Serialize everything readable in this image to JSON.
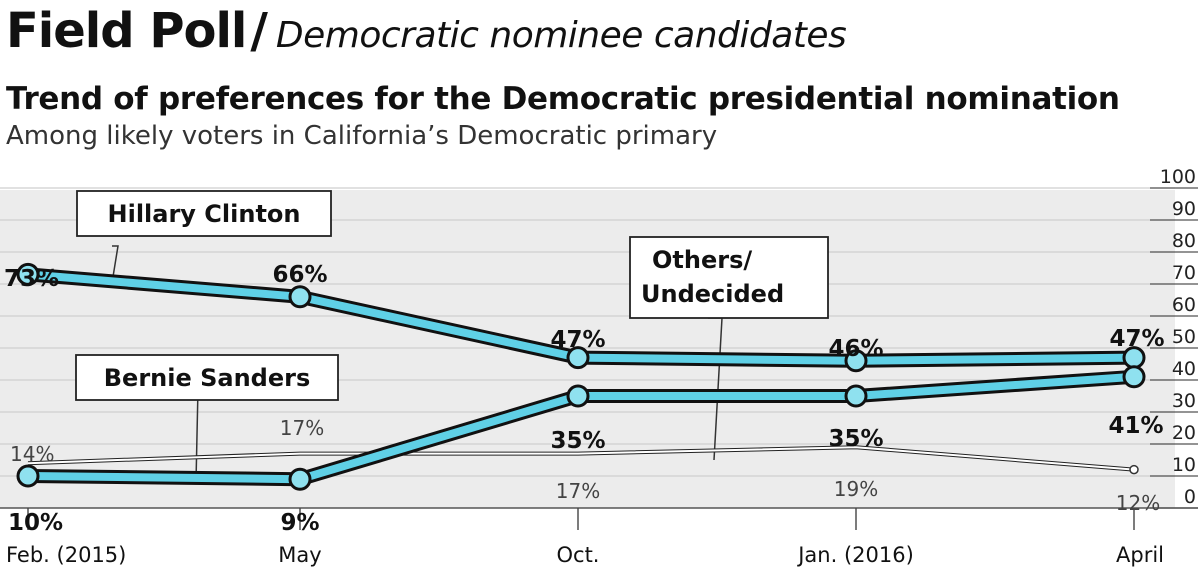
{
  "header": {
    "brand": "Field Poll",
    "separator": "/",
    "section": "Democratic nominee candidates"
  },
  "chart_data": {
    "type": "line",
    "title": "Trend of preferences for the Democratic presidential nomination",
    "subtitle": "Among likely voters in California’s Democratic primary",
    "categories": [
      "Feb. (2015)",
      "May",
      "Oct.",
      "Jan. (2016)",
      "April"
    ],
    "ylim": [
      0,
      100
    ],
    "yticks": [
      0,
      10,
      20,
      30,
      40,
      50,
      60,
      70,
      80,
      90,
      100
    ],
    "grid": true,
    "series": [
      {
        "name": "Hillary Clinton",
        "values": [
          73,
          66,
          47,
          46,
          47
        ],
        "labels": [
          "73%",
          "66%",
          "47%",
          "46%",
          "47%"
        ],
        "color": "#5fd0e6"
      },
      {
        "name": "Bernie Sanders",
        "values": [
          10,
          9,
          35,
          35,
          41
        ],
        "labels": [
          "10%",
          "9%",
          "35%",
          "35%",
          "41%"
        ],
        "color": "#5fd0e6"
      },
      {
        "name": "Others/\nUndecided",
        "values": [
          14,
          17,
          17,
          19,
          12
        ],
        "labels": [
          "14%",
          "17%",
          "17%",
          "19%",
          "12%"
        ],
        "color": "#ffffff"
      }
    ],
    "callouts": {
      "clinton": "Hillary Clinton",
      "sanders": "Bernie Sanders",
      "others_line1": "Others/",
      "others_line2": "Undecided"
    }
  }
}
